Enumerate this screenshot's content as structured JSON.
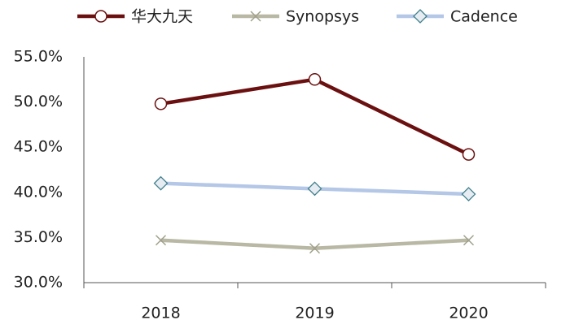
{
  "chart_data": {
    "type": "line",
    "categories": [
      "2018",
      "2019",
      "2020"
    ],
    "series": [
      {
        "name": "华大九天",
        "color": "#6b1010",
        "marker": "circle",
        "values": [
          49.8,
          52.5,
          44.2
        ]
      },
      {
        "name": "Synopsys",
        "color": "#b8b8a4",
        "marker": "x",
        "values": [
          34.7,
          33.8,
          34.7
        ]
      },
      {
        "name": "Cadence",
        "color": "#b4c7e7",
        "marker": "diamond",
        "values": [
          41.0,
          40.4,
          39.8
        ]
      }
    ],
    "ylim": [
      30,
      55
    ],
    "yticks": [
      {
        "value": 30,
        "label": "30.0%"
      },
      {
        "value": 35,
        "label": "35.0%"
      },
      {
        "value": 40,
        "label": "40.0%"
      },
      {
        "value": 45,
        "label": "45.0%"
      },
      {
        "value": 50,
        "label": "50.0%"
      },
      {
        "value": 55,
        "label": "55.0%"
      }
    ],
    "grid": false,
    "legend": "top"
  }
}
